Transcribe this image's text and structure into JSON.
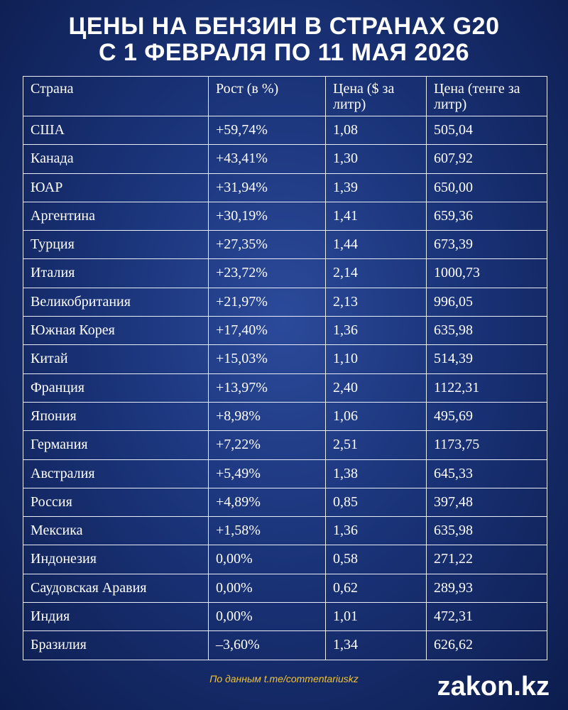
{
  "header": {
    "title_lines": [
      "ЦЕНЫ НА БЕНЗИН В СТРАНАХ G20",
      "С 1 ФЕВРАЛЯ ПО 11 МАЯ 2026"
    ]
  },
  "table": {
    "columns": [
      "Страна",
      "Рост (в %)",
      "Цена ($ за литр)",
      "Цена (тенге за литр)"
    ],
    "rows": [
      [
        "США",
        "+59,74%",
        "1,08",
        "505,04"
      ],
      [
        "Канада",
        "+43,41%",
        "1,30",
        "607,92"
      ],
      [
        "ЮАР",
        "+31,94%",
        "1,39",
        "650,00"
      ],
      [
        "Аргентина",
        "+30,19%",
        "1,41",
        "659,36"
      ],
      [
        "Турция",
        "+27,35%",
        "1,44",
        "673,39"
      ],
      [
        "Италия",
        "+23,72%",
        "2,14",
        "1000,73"
      ],
      [
        "Великобритания",
        "+21,97%",
        "2,13",
        "996,05"
      ],
      [
        "Южная Корея",
        "+17,40%",
        "1,36",
        "635,98"
      ],
      [
        "Китай",
        "+15,03%",
        "1,10",
        "514,39"
      ],
      [
        "Франция",
        "+13,97%",
        "2,40",
        "1122,31"
      ],
      [
        "Япония",
        "+8,98%",
        "1,06",
        "495,69"
      ],
      [
        "Германия",
        "+7,22%",
        "2,51",
        "1173,75"
      ],
      [
        "Австралия",
        "+5,49%",
        "1,38",
        "645,33"
      ],
      [
        "Россия",
        "+4,89%",
        "0,85",
        "397,48"
      ],
      [
        "Мексика",
        "+1,58%",
        "1,36",
        "635,98"
      ],
      [
        "Индонезия",
        "0,00%",
        "0,58",
        "271,22"
      ],
      [
        "Саудовская Аравия",
        "0,00%",
        "0,62",
        "289,93"
      ],
      [
        "Индия",
        "0,00%",
        "1,01",
        "472,31"
      ],
      [
        "Бразилия",
        "–3,60%",
        "1,34",
        "626,62"
      ]
    ]
  },
  "footer": {
    "source": "По данным t.me/commentariuskz",
    "logo": "zakon.kz"
  }
}
